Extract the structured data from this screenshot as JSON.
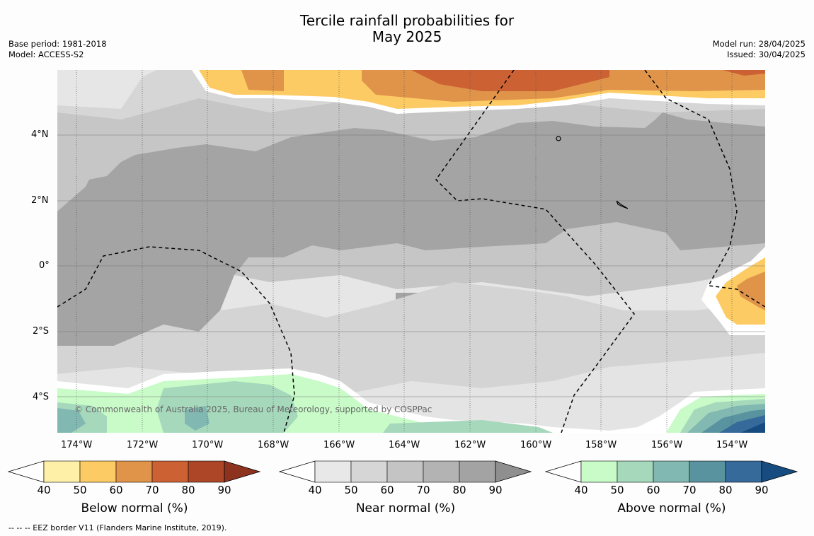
{
  "title_line1": "Tercile rainfall probabilities for",
  "title_line2": "May 2025",
  "base_period": "Base period: 1981-2018",
  "model": "Model: ACCESS-S2",
  "model_run": "Model run: 28/04/2025",
  "issued": "Issued: 30/04/2025",
  "map": {
    "lon_labels": [
      "174°W",
      "172°W",
      "170°W",
      "168°W",
      "166°W",
      "164°W",
      "162°W",
      "160°W",
      "158°W",
      "156°W",
      "154°W"
    ],
    "lat_labels": [
      "4°N",
      "2°N",
      "0°",
      "2°S",
      "4°S"
    ],
    "copyright": "© Commonwealth of Australia 2025, Bureau of Meteorology, supported by COSPPac"
  },
  "colorbars": [
    {
      "label": "Below normal (%)",
      "ticks": [
        "40",
        "50",
        "60",
        "70",
        "80",
        "90"
      ],
      "colors": [
        "#fff0a8",
        "#fdcb64",
        "#e0944a",
        "#cc6234",
        "#ad4626",
        "#8e3220"
      ]
    },
    {
      "label": "Near normal (%)",
      "ticks": [
        "40",
        "50",
        "60",
        "70",
        "80",
        "90"
      ],
      "colors": [
        "#e8e8e8",
        "#d6d6d6",
        "#c4c4c4",
        "#b3b3b3",
        "#a3a3a3",
        "#8f8f8f"
      ]
    },
    {
      "label": "Above normal (%)",
      "ticks": [
        "40",
        "50",
        "60",
        "70",
        "80",
        "90"
      ],
      "colors": [
        "#c8fbc8",
        "#a6d8bc",
        "#82b8b2",
        "#5a93a0",
        "#366a9a",
        "#174c80"
      ]
    }
  ],
  "footer": "--  --  -- EEZ border V11 (Flanders Marine Institute, 2019)."
}
